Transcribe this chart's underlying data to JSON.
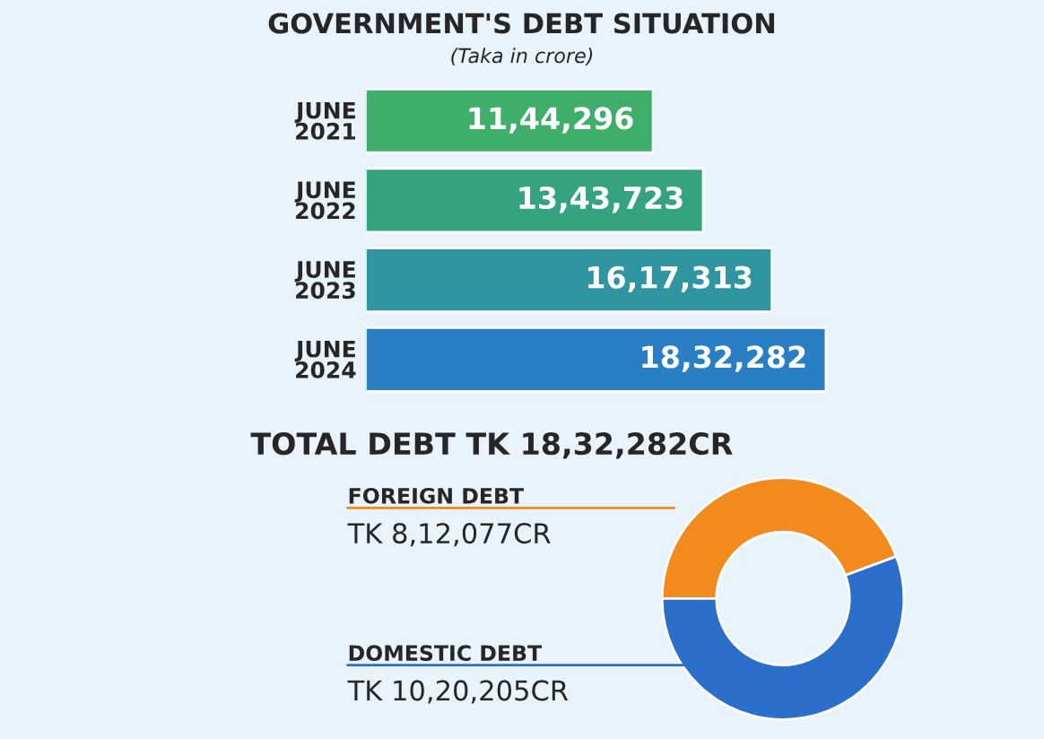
{
  "chart_data": [
    {
      "type": "bar",
      "orientation": "horizontal",
      "title": "GOVERNMENT'S DEBT SITUATION",
      "subtitle": "(Taka in crore)",
      "categories": [
        "JUNE\n2021",
        "JUNE\n2022",
        "JUNE\n2023",
        "JUNE\n2024"
      ],
      "values": [
        1144296,
        1343723,
        1617313,
        1832282
      ],
      "value_labels": [
        "11,44,296",
        "13,43,723",
        "16,17,313",
        "18,32,282"
      ],
      "colors": [
        "#3fae6a",
        "#35a37f",
        "#2f95a0",
        "#2a7fc4"
      ],
      "tick_labels": "y"
    },
    {
      "type": "donut",
      "title": "TOTAL DEBT TK 18,32,282CR",
      "categories": [
        "FOREIGN DEBT",
        "DOMESTIC DEBT"
      ],
      "values": [
        812077,
        1020205
      ],
      "value_labels": [
        "TK 8,12,077CR",
        "TK 10,20,205CR"
      ],
      "colors": [
        "#f28a1e",
        "#2c6fcb"
      ]
    }
  ]
}
